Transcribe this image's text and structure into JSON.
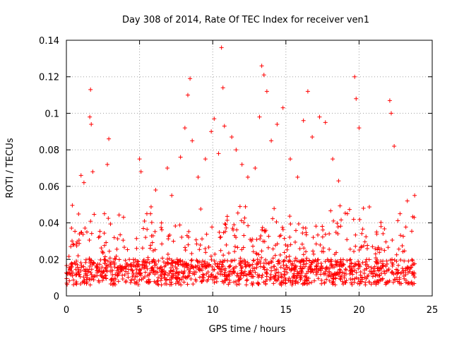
{
  "chart_data": {
    "type": "scatter",
    "title": "Day 308 of 2014, Rate Of TEC Index for receiver ven1",
    "xlabel": "GPS time / hours",
    "ylabel": "ROTI / TECUs",
    "xlim": [
      0,
      25
    ],
    "ylim": [
      0,
      0.14
    ],
    "x_ticks": [
      0,
      5,
      10,
      15,
      20,
      25
    ],
    "x_tick_labels": [
      "0",
      "5",
      "10",
      "15",
      "20",
      "25"
    ],
    "y_ticks": [
      0,
      0.02,
      0.04,
      0.06,
      0.08,
      0.1,
      0.12,
      0.14
    ],
    "y_tick_labels": [
      "0",
      "0.02",
      "0.04",
      "0.06",
      "0.08",
      "0.1",
      "0.12",
      "0.14"
    ],
    "grid": true,
    "marker": "+",
    "color": "#ff0000",
    "series": [
      {
        "name": "ROTI",
        "points": [
          [
            0.1,
            0.012
          ],
          [
            0.3,
            0.027
          ],
          [
            0.5,
            0.028
          ],
          [
            0.8,
            0.022
          ],
          [
            1.0,
            0.066
          ],
          [
            1.2,
            0.062
          ],
          [
            1.4,
            0.035
          ],
          [
            1.6,
            0.098
          ],
          [
            1.65,
            0.113
          ],
          [
            1.7,
            0.094
          ],
          [
            1.8,
            0.068
          ],
          [
            2.2,
            0.032
          ],
          [
            2.6,
            0.045
          ],
          [
            2.8,
            0.072
          ],
          [
            2.9,
            0.086
          ],
          [
            3.3,
            0.018
          ],
          [
            3.8,
            0.014
          ],
          [
            4.3,
            0.02
          ],
          [
            4.8,
            0.026
          ],
          [
            5.0,
            0.075
          ],
          [
            5.1,
            0.068
          ],
          [
            5.5,
            0.045
          ],
          [
            6.1,
            0.058
          ],
          [
            6.5,
            0.04
          ],
          [
            6.9,
            0.07
          ],
          [
            7.2,
            0.055
          ],
          [
            7.8,
            0.076
          ],
          [
            8.1,
            0.092
          ],
          [
            8.3,
            0.11
          ],
          [
            8.45,
            0.119
          ],
          [
            8.6,
            0.085
          ],
          [
            9.0,
            0.065
          ],
          [
            9.5,
            0.075
          ],
          [
            9.9,
            0.09
          ],
          [
            10.1,
            0.097
          ],
          [
            10.4,
            0.078
          ],
          [
            10.6,
            0.136
          ],
          [
            10.7,
            0.114
          ],
          [
            10.8,
            0.093
          ],
          [
            11.3,
            0.087
          ],
          [
            11.6,
            0.08
          ],
          [
            12.0,
            0.072
          ],
          [
            12.4,
            0.065
          ],
          [
            12.9,
            0.07
          ],
          [
            13.2,
            0.098
          ],
          [
            13.35,
            0.126
          ],
          [
            13.5,
            0.121
          ],
          [
            13.7,
            0.112
          ],
          [
            14.0,
            0.085
          ],
          [
            14.4,
            0.094
          ],
          [
            14.8,
            0.103
          ],
          [
            15.3,
            0.075
          ],
          [
            15.8,
            0.065
          ],
          [
            16.2,
            0.096
          ],
          [
            16.5,
            0.112
          ],
          [
            16.8,
            0.087
          ],
          [
            17.3,
            0.098
          ],
          [
            17.7,
            0.095
          ],
          [
            18.2,
            0.075
          ],
          [
            18.6,
            0.063
          ],
          [
            19.2,
            0.045
          ],
          [
            19.7,
            0.12
          ],
          [
            19.8,
            0.108
          ],
          [
            20.0,
            0.092
          ],
          [
            20.3,
            0.048
          ],
          [
            21.2,
            0.035
          ],
          [
            21.5,
            0.038
          ],
          [
            22.1,
            0.107
          ],
          [
            22.2,
            0.1
          ],
          [
            22.4,
            0.082
          ],
          [
            22.8,
            0.045
          ],
          [
            23.3,
            0.052
          ],
          [
            23.8,
            0.055
          ]
        ]
      }
    ]
  }
}
